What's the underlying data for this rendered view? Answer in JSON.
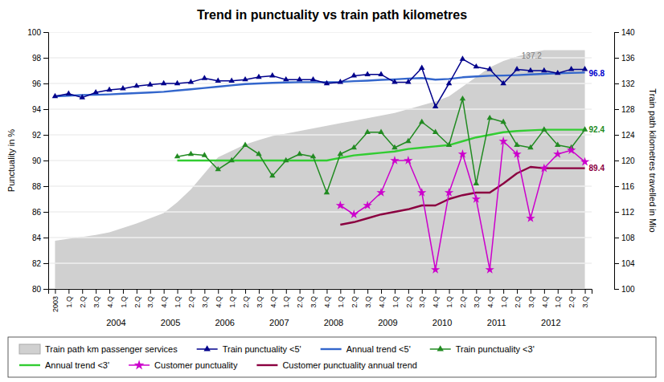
{
  "chart_data": {
    "type": "line",
    "title": "Trend in punctuality vs train path kilometres",
    "ylabel": "Punctuality in %",
    "y2label": "Train path kilometres travelled in Mio",
    "ylim": [
      80,
      100
    ],
    "yticks": [
      80,
      82,
      84,
      86,
      88,
      90,
      92,
      94,
      96,
      98,
      100
    ],
    "y2lim": [
      100,
      140
    ],
    "y2ticks": [
      100,
      104,
      108,
      112,
      116,
      120,
      124,
      128,
      132,
      136,
      140
    ],
    "grid": true,
    "legend": "bottom",
    "categories": [
      "2003",
      "1.Q",
      "2.Q",
      "3.Q",
      "4.Q",
      "1.Q",
      "2.Q",
      "3.Q",
      "4.Q",
      "1.Q",
      "2.Q",
      "3.Q",
      "4.Q",
      "1.Q",
      "2.Q",
      "3.Q",
      "4.Q",
      "1.Q",
      "2.Q",
      "3.Q",
      "4.Q",
      "1.Q",
      "2.Q",
      "3.Q",
      "4.Q",
      "1.Q",
      "2.Q",
      "3.Q",
      "4.Q",
      "1.Q",
      "2.Q",
      "3.Q",
      "4.Q",
      "1.Q",
      "2.Q",
      "3.Q",
      "4.Q",
      "1.Q",
      "2.Q",
      "3.Q"
    ],
    "group_labels": [
      {
        "text": "2004",
        "x": 4.5
      },
      {
        "text": "2005",
        "x": 8.5
      },
      {
        "text": "2006",
        "x": 12.5
      },
      {
        "text": "2007",
        "x": 16.5
      },
      {
        "text": "2008",
        "x": 20.5
      },
      {
        "text": "2009",
        "x": 24.5
      },
      {
        "text": "2010",
        "x": 28.5
      },
      {
        "text": "2011",
        "x": 32.5
      },
      {
        "text": "2012",
        "x": 36.5
      }
    ],
    "annotations": [
      {
        "text": "137.2",
        "x": 36,
        "y": 137.2,
        "axis": "y2",
        "color": "#808080"
      },
      {
        "text": "96.8",
        "x": 39,
        "y": 96.8,
        "color": "#0000CD"
      },
      {
        "text": "92.4",
        "x": 39,
        "y": 92.4,
        "color": "#228B22"
      },
      {
        "text": "89.4",
        "x": 39,
        "y": 89.4,
        "color": "#8B0040"
      }
    ],
    "series": [
      {
        "name": "Train path km passenger services",
        "type": "area",
        "axis": "y2",
        "color": "#d0d0d0",
        "values": [
          107.5,
          107.8,
          108.1,
          108.4,
          108.8,
          109.5,
          110.2,
          111.0,
          111.8,
          113.5,
          115.5,
          118.0,
          120.5,
          121.5,
          122.5,
          123.2,
          123.8,
          124.2,
          124.6,
          125.0,
          125.4,
          125.8,
          126.2,
          126.6,
          127.0,
          127.4,
          128.0,
          128.6,
          129.2,
          130.0,
          131.5,
          133.0,
          134.5,
          135.5,
          136.2,
          136.8,
          137.2,
          137.2,
          137.2,
          137.2
        ]
      },
      {
        "name": "Train punctuality <5'",
        "type": "line",
        "color": "#00008B",
        "marker": "triangle",
        "values": [
          95.0,
          95.2,
          94.9,
          95.3,
          95.5,
          95.6,
          95.8,
          95.9,
          96.0,
          96.0,
          96.1,
          96.4,
          96.2,
          96.2,
          96.3,
          96.5,
          96.6,
          96.3,
          96.3,
          96.3,
          96.0,
          96.1,
          96.6,
          96.7,
          96.7,
          96.1,
          96.1,
          97.2,
          94.2,
          96.0,
          97.9,
          97.3,
          97.1,
          96.0,
          97.1,
          97.0,
          97.0,
          96.8,
          97.1,
          97.1
        ]
      },
      {
        "name": "Annual trend <5'",
        "type": "line",
        "color": "#3366CC",
        "values": [
          95.0,
          95.05,
          95.1,
          95.12,
          95.15,
          95.2,
          95.25,
          95.3,
          95.35,
          95.45,
          95.55,
          95.65,
          95.75,
          95.85,
          95.95,
          96.0,
          96.05,
          96.08,
          96.1,
          96.1,
          96.1,
          96.12,
          96.18,
          96.22,
          96.28,
          96.32,
          96.38,
          96.42,
          96.3,
          96.35,
          96.48,
          96.55,
          96.6,
          96.62,
          96.65,
          96.7,
          96.75,
          96.8,
          96.82,
          96.85
        ]
      },
      {
        "name": "Train punctuality <3'",
        "type": "line",
        "color": "#228B22",
        "marker": "triangle",
        "values": [
          null,
          null,
          null,
          null,
          null,
          null,
          null,
          null,
          null,
          90.3,
          90.5,
          90.4,
          89.3,
          90.0,
          91.2,
          90.5,
          88.8,
          90.0,
          90.5,
          90.3,
          87.5,
          90.5,
          91.0,
          92.2,
          92.2,
          91.0,
          91.5,
          93.0,
          92.2,
          91.2,
          94.8,
          88.2,
          93.3,
          93.0,
          91.2,
          91.0,
          92.4,
          91.2,
          91.0,
          92.4
        ]
      },
      {
        "name": "Annual trend <3'",
        "type": "line",
        "color": "#32CD32",
        "values": [
          null,
          null,
          null,
          null,
          null,
          null,
          null,
          null,
          null,
          90.0,
          90.0,
          90.0,
          90.0,
          90.0,
          90.0,
          90.0,
          90.0,
          90.0,
          90.0,
          90.0,
          90.0,
          90.2,
          90.4,
          90.5,
          90.6,
          90.7,
          90.9,
          91.0,
          91.1,
          91.2,
          91.5,
          91.8,
          92.0,
          92.2,
          92.3,
          92.35,
          92.4,
          92.4,
          92.4,
          92.4
        ]
      },
      {
        "name": "Customer punctuality",
        "type": "line",
        "color": "#CC00CC",
        "marker": "star",
        "values": [
          null,
          null,
          null,
          null,
          null,
          null,
          null,
          null,
          null,
          null,
          null,
          null,
          null,
          null,
          null,
          null,
          null,
          null,
          null,
          null,
          null,
          86.5,
          85.8,
          86.5,
          87.5,
          90.0,
          90.0,
          87.5,
          81.5,
          87.5,
          90.5,
          87.0,
          81.5,
          91.5,
          90.5,
          85.5,
          89.4,
          90.5,
          90.8,
          89.9
        ]
      },
      {
        "name": "Customer punctuality annual trend",
        "type": "line",
        "color": "#8B0040",
        "values": [
          null,
          null,
          null,
          null,
          null,
          null,
          null,
          null,
          null,
          null,
          null,
          null,
          null,
          null,
          null,
          null,
          null,
          null,
          null,
          null,
          null,
          85.0,
          85.2,
          85.5,
          85.8,
          86.0,
          86.2,
          86.5,
          86.5,
          87.0,
          87.3,
          87.5,
          87.5,
          88.2,
          89.0,
          89.5,
          89.4,
          89.4,
          89.4,
          89.4
        ]
      }
    ]
  }
}
